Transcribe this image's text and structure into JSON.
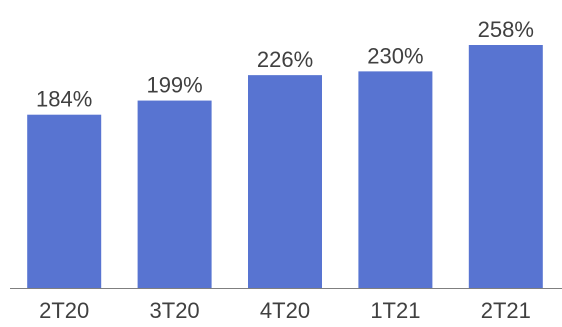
{
  "chart_data": {
    "type": "bar",
    "title": "",
    "xlabel": "",
    "ylabel": "",
    "categories": [
      "2T20",
      "3T20",
      "4T20",
      "1T21",
      "2T21"
    ],
    "values": [
      184,
      199,
      226,
      230,
      258
    ],
    "data_labels": [
      "184%",
      "199%",
      "226%",
      "230%",
      "258%"
    ],
    "ylim": [
      0,
      258
    ],
    "grid": false,
    "legend": "none",
    "bar_color": "#5874D1"
  }
}
